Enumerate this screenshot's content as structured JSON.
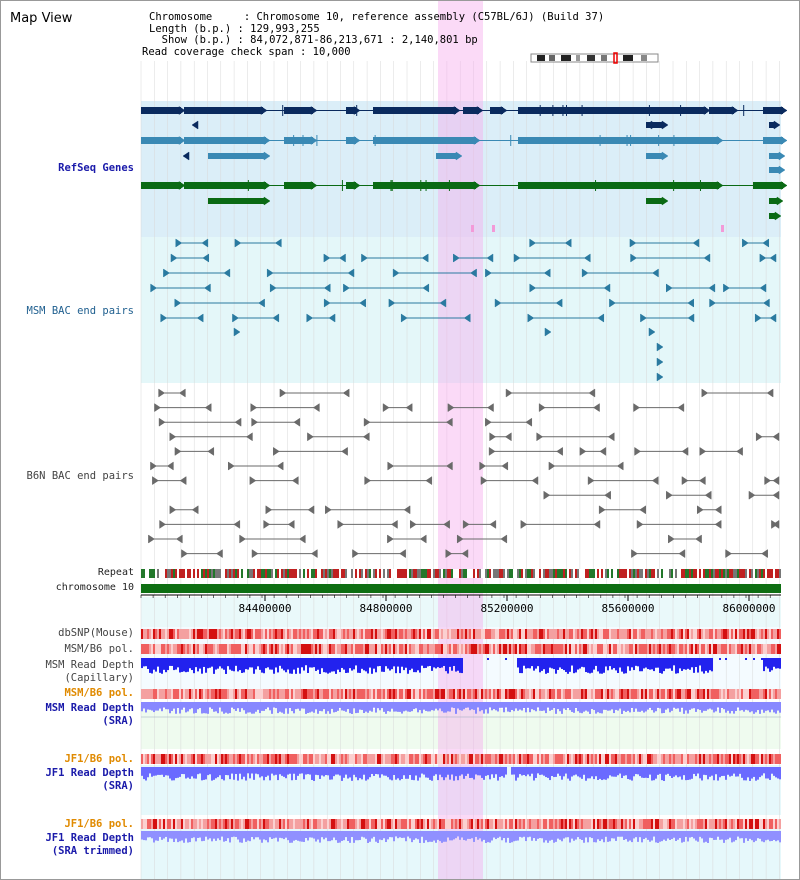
{
  "title": "Map View",
  "info": {
    "chromosome": "Chromosome     : Chromosome 10, reference assembly (C57BL/6J) (Build 37)",
    "length": "Length (b.p.) : 129,993,255",
    "show": "  Show (b.p.) : 84,072,871-86,213,671 : 2,140,801 bp",
    "span": "Read coverage check span : 10,000"
  },
  "tracks": {
    "refseq": "RefSeq Genes",
    "msm_bac": "MSM BAC end pairs",
    "b6n_bac": "B6N BAC end pairs",
    "repeat": "Repeat",
    "chromosome": "chromosome 10",
    "dbsnp": "dbSNP(Mouse)",
    "msm_pol1": "MSM/B6 pol.",
    "msm_depth_cap_1": "MSM Read Depth",
    "msm_depth_cap_2": "(Capillary)",
    "msm_pol2": "MSM/B6 pol.",
    "msm_depth_sra_1": "MSM Read Depth",
    "msm_depth_sra_2": "(SRA)",
    "jf1_pol1": "JF1/B6 pol.",
    "jf1_depth_sra_1": "JF1 Read Depth",
    "jf1_depth_sra_2": "(SRA)",
    "jf1_pol2": "JF1/B6 pol.",
    "jf1_depth_trim_1": "JF1 Read Depth",
    "jf1_depth_trim_2": "(SRA trimmed)"
  },
  "axis_ticks": [
    "84400000",
    "84800000",
    "85200000",
    "85600000",
    "86000000"
  ],
  "colors": {
    "refseq_dark": "#0a2a5e",
    "refseq_mid": "#3a89b4",
    "refseq_green": "#0a6a14",
    "msm_bac": "#2a7aa0",
    "b6n_bac": "#6a6a6a",
    "selection": "#f5b0ee",
    "depth_blue": "#1c1cff",
    "pol_red": "#ee3030"
  }
}
